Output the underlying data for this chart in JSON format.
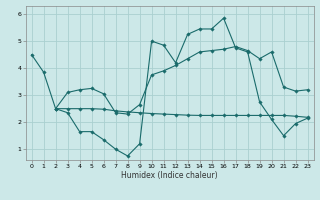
{
  "title": "",
  "xlabel": "Humidex (Indice chaleur)",
  "ylabel": "",
  "bg_color": "#cce8e8",
  "grid_color": "#aad0d0",
  "line_color": "#1a6b6b",
  "xlim": [
    -0.5,
    23.5
  ],
  "ylim": [
    0.6,
    6.3
  ],
  "xticks": [
    0,
    1,
    2,
    3,
    4,
    5,
    6,
    7,
    8,
    9,
    10,
    11,
    12,
    13,
    14,
    15,
    16,
    17,
    18,
    19,
    20,
    21,
    22,
    23
  ],
  "yticks": [
    1,
    2,
    3,
    4,
    5,
    6
  ],
  "line1_x": [
    0,
    1,
    2,
    3,
    4,
    5,
    6,
    7,
    8,
    9,
    10,
    11,
    12,
    13,
    14,
    15,
    16,
    17,
    18,
    19,
    20,
    21,
    22,
    23
  ],
  "line1_y": [
    4.5,
    3.85,
    2.5,
    2.35,
    1.65,
    1.65,
    1.35,
    1.0,
    0.75,
    1.2,
    5.0,
    4.85,
    4.2,
    5.25,
    5.45,
    5.45,
    5.85,
    4.75,
    4.6,
    2.75,
    2.1,
    1.5,
    1.95,
    2.15
  ],
  "line2_x": [
    2,
    3,
    4,
    5,
    6,
    7,
    8,
    9,
    10,
    11,
    12,
    13,
    14,
    15,
    16,
    17,
    18,
    19,
    20,
    21,
    22,
    23
  ],
  "line2_y": [
    2.5,
    3.1,
    3.2,
    3.25,
    3.05,
    2.35,
    2.3,
    2.65,
    3.75,
    3.9,
    4.1,
    4.35,
    4.6,
    4.65,
    4.7,
    4.8,
    4.65,
    4.35,
    4.6,
    3.3,
    3.15,
    3.2
  ],
  "line3_x": [
    2,
    3,
    4,
    5,
    6,
    7,
    8,
    9,
    10,
    11,
    12,
    13,
    14,
    15,
    16,
    17,
    18,
    19,
    20,
    21,
    22,
    23
  ],
  "line3_y": [
    2.5,
    2.5,
    2.5,
    2.5,
    2.48,
    2.42,
    2.38,
    2.35,
    2.32,
    2.3,
    2.28,
    2.26,
    2.25,
    2.25,
    2.25,
    2.25,
    2.25,
    2.25,
    2.25,
    2.25,
    2.22,
    2.18
  ],
  "xlabel_fontsize": 5.5,
  "tick_fontsize": 4.5,
  "lw": 0.8,
  "ms": 1.8
}
